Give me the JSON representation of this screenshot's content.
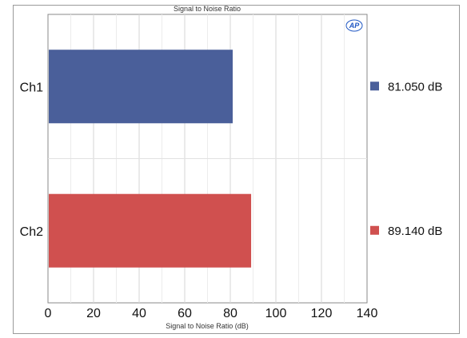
{
  "chart_data": {
    "type": "bar",
    "orientation": "horizontal",
    "title": "Signal to Noise Ratio",
    "xlabel": "Signal to Noise Ratio (dB)",
    "ylabel": "",
    "xlim": [
      0,
      140
    ],
    "xticks": [
      0,
      20,
      40,
      60,
      80,
      100,
      120,
      140
    ],
    "grid": true,
    "categories": [
      "Ch1",
      "Ch2"
    ],
    "values": [
      81.05,
      89.14
    ],
    "colors": [
      "#4a5f9a",
      "#d0504f"
    ],
    "legend": {
      "placement": "right",
      "entries": [
        "81.050 dB",
        "89.140 dB"
      ]
    },
    "logo": "AP"
  }
}
